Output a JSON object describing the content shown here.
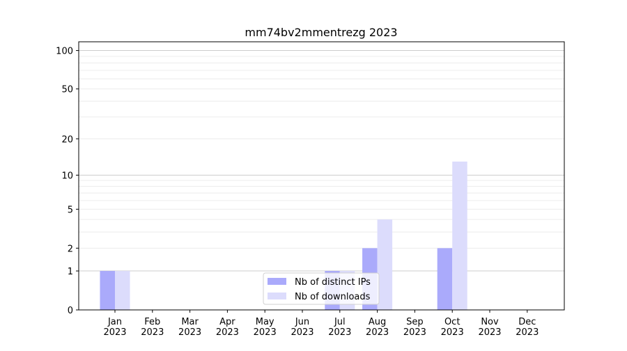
{
  "chart_data": {
    "type": "bar",
    "title": "mm74bv2mmentrezg 2023",
    "xlabel": "",
    "ylabel": "",
    "categories": [
      "Jan\n2023",
      "Feb\n2023",
      "Mar\n2023",
      "Apr\n2023",
      "May\n2023",
      "Jun\n2023",
      "Jul\n2023",
      "Aug\n2023",
      "Sep\n2023",
      "Oct\n2023",
      "Nov\n2023",
      "Dec\n2023"
    ],
    "yscale": "log(1+y)",
    "ylim": [
      0,
      117
    ],
    "yticks": [
      0,
      1,
      2,
      5,
      10,
      20,
      50,
      100
    ],
    "grid": true,
    "legend_position": "bottom-center",
    "series": [
      {
        "name": "Nb of distinct IPs",
        "color": "#aaaafb",
        "values": [
          1,
          0,
          0,
          0,
          0,
          0,
          1,
          2,
          0,
          2,
          0,
          0
        ]
      },
      {
        "name": "Nb of downloads",
        "color": "#dcdcfc",
        "values": [
          1,
          0,
          0,
          0,
          0,
          0,
          1,
          4,
          0,
          13,
          0,
          0
        ]
      }
    ]
  }
}
